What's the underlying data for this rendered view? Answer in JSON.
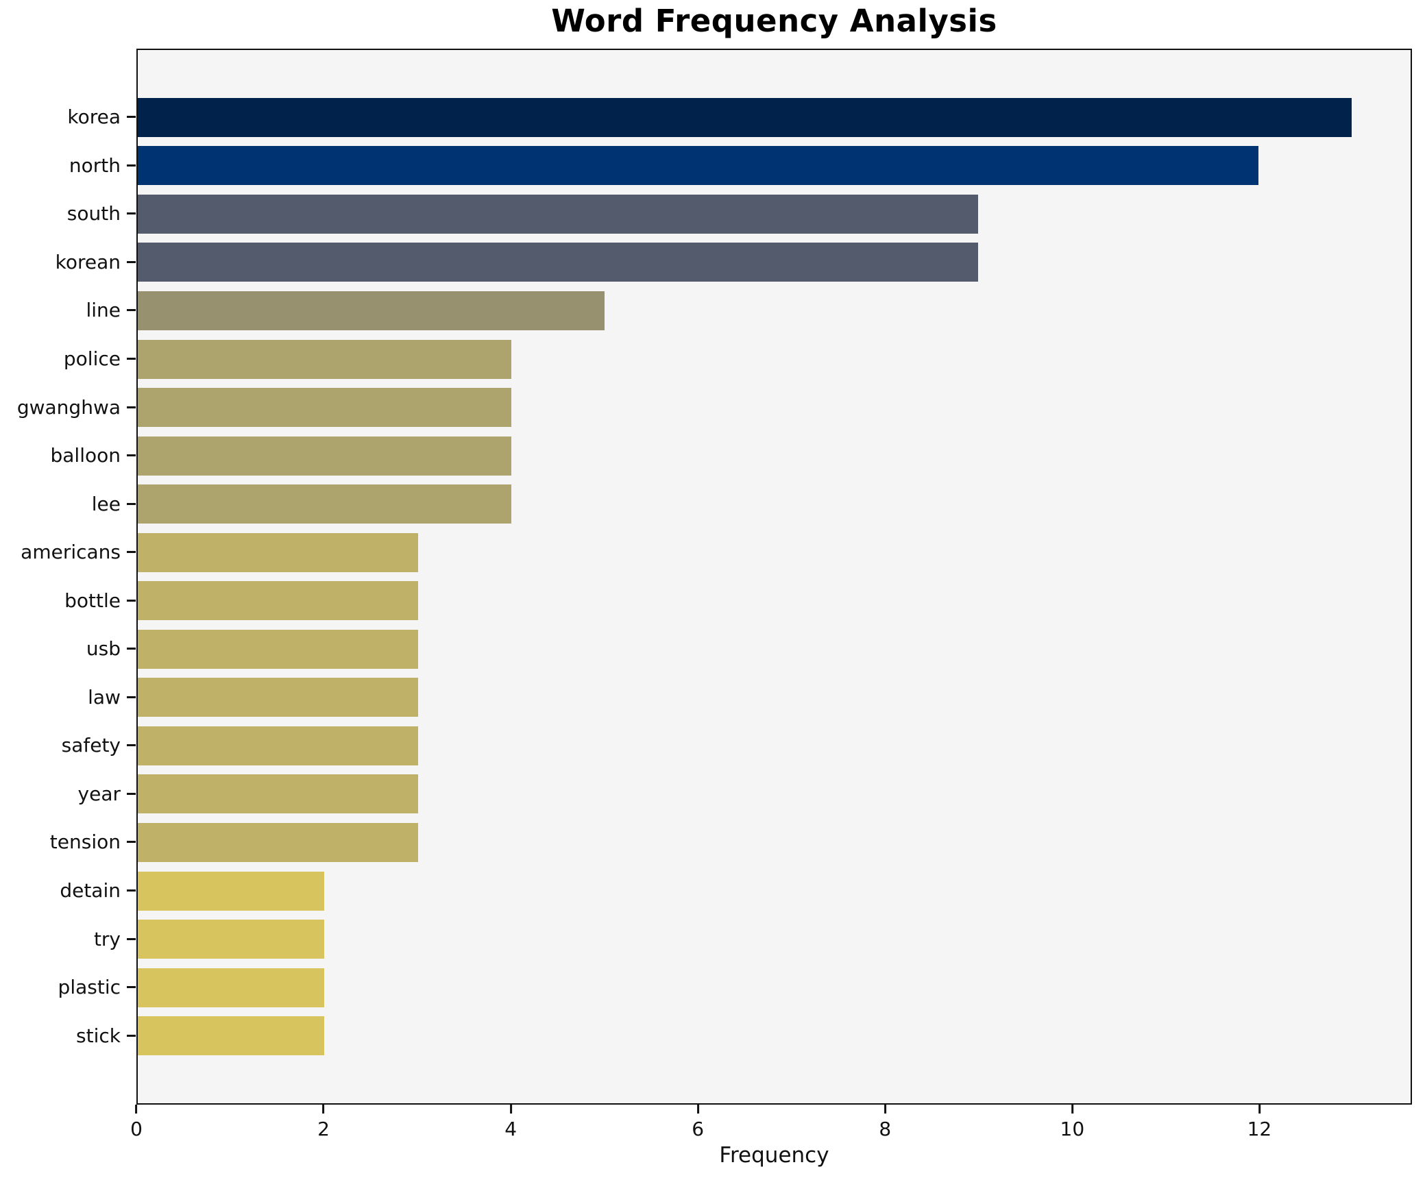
{
  "title": "Word Frequency Analysis",
  "chart_data": {
    "type": "bar",
    "orientation": "horizontal",
    "title": "Word Frequency Analysis",
    "xlabel": "Frequency",
    "ylabel": "",
    "categories": [
      "korea",
      "north",
      "south",
      "korean",
      "line",
      "police",
      "gwanghwa",
      "balloon",
      "lee",
      "americans",
      "bottle",
      "usb",
      "law",
      "safety",
      "year",
      "tension",
      "detain",
      "try",
      "plastic",
      "stick"
    ],
    "values": [
      13,
      12,
      9,
      9,
      5,
      4,
      4,
      4,
      4,
      3,
      3,
      3,
      3,
      3,
      3,
      3,
      2,
      2,
      2,
      2
    ],
    "x_ticks": [
      0,
      2,
      4,
      6,
      8,
      10,
      12
    ],
    "xlim": [
      0,
      13.63
    ],
    "grid": false,
    "legend": null,
    "colors_by_value": {
      "13": "#01224a",
      "12": "#003371",
      "9": "#545b6d",
      "5": "#97916f",
      "4": "#ada36c",
      "3": "#bfb168",
      "2": "#d7c45e"
    },
    "plot_background": "#f5f5f6",
    "figure_background": "#ffffff",
    "spine_color": "#111111"
  }
}
